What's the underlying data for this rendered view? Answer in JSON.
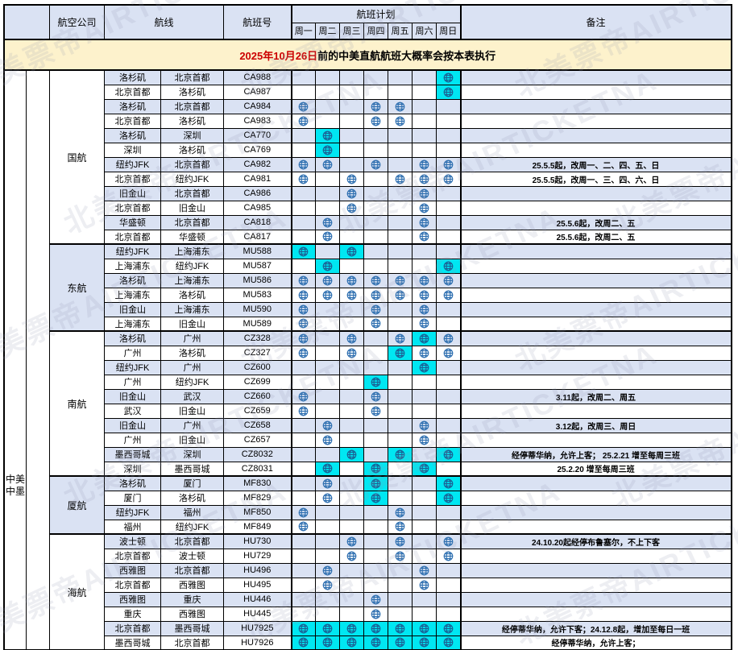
{
  "header": {
    "airline": "航空公司",
    "route": "航线",
    "flight_no": "航班号",
    "schedule": "航班计划",
    "days": [
      "周一",
      "周二",
      "周三",
      "周四",
      "周五",
      "周六",
      "周日"
    ],
    "remarks": "备注"
  },
  "banner": {
    "date": "2025年10月26日",
    "text": "前的中美直航航班大概率会按本表执行"
  },
  "side_label": {
    "lines": [
      "中美",
      "中墨"
    ]
  },
  "watermark": {
    "text": "北美票帝AIRTICKETNA"
  },
  "colors": {
    "header_bg": "#dae2f3",
    "row_alt_bg": "#dae2f3",
    "highlight_cyan": "#00e7f2",
    "banner_bg": "#fdf2cc",
    "banner_date_red": "#cc0000",
    "icon_blue": "#2e6fb0",
    "icon_dark_blue": "#1b6094",
    "border_black": "#000000"
  },
  "icon_legend": {
    "flight_icon": "globe-airline-logo-icon",
    "cell_codes": "0=no flight, 1=flight, 2=flight highlighted cyan"
  },
  "groups": [
    {
      "airline": "国航",
      "shaded": false,
      "rows": [
        {
          "from": "洛杉矶",
          "to": "北京首都",
          "flight": "CA988",
          "days": [
            0,
            0,
            0,
            0,
            0,
            0,
            2
          ],
          "remark": ""
        },
        {
          "from": "北京首都",
          "to": "洛杉矶",
          "flight": "CA987",
          "days": [
            0,
            0,
            0,
            0,
            0,
            0,
            2
          ],
          "remark": ""
        },
        {
          "from": "洛杉矶",
          "to": "北京首都",
          "flight": "CA984",
          "days": [
            1,
            0,
            0,
            1,
            1,
            0,
            0
          ],
          "remark": ""
        },
        {
          "from": "北京首都",
          "to": "洛杉矶",
          "flight": "CA983",
          "days": [
            1,
            0,
            0,
            1,
            1,
            0,
            0
          ],
          "remark": ""
        },
        {
          "from": "洛杉矶",
          "to": "深圳",
          "flight": "CA770",
          "days": [
            0,
            2,
            0,
            0,
            0,
            0,
            0
          ],
          "remark": ""
        },
        {
          "from": "深圳",
          "to": "洛杉矶",
          "flight": "CA769",
          "days": [
            0,
            2,
            0,
            0,
            0,
            0,
            0
          ],
          "remark": ""
        },
        {
          "from": "纽约JFK",
          "to": "北京首都",
          "flight": "CA982",
          "days": [
            1,
            1,
            0,
            1,
            0,
            1,
            1
          ],
          "remark": "25.5.5起，改周一、二、四、五、日"
        },
        {
          "from": "北京首都",
          "to": "纽约JFK",
          "flight": "CA981",
          "days": [
            1,
            0,
            1,
            0,
            1,
            1,
            1
          ],
          "remark": "25.5.5起，改周一、三、四、六、日"
        },
        {
          "from": "旧金山",
          "to": "北京首都",
          "flight": "CA986",
          "days": [
            0,
            0,
            1,
            0,
            0,
            1,
            0
          ],
          "remark": ""
        },
        {
          "from": "北京首都",
          "to": "旧金山",
          "flight": "CA985",
          "days": [
            0,
            0,
            1,
            0,
            0,
            1,
            0
          ],
          "remark": ""
        },
        {
          "from": "华盛顿",
          "to": "北京首都",
          "flight": "CA818",
          "days": [
            0,
            1,
            0,
            0,
            0,
            1,
            0
          ],
          "remark": "25.5.6起，改周二、五"
        },
        {
          "from": "北京首都",
          "to": "华盛顿",
          "flight": "CA817",
          "days": [
            0,
            1,
            0,
            0,
            0,
            1,
            0
          ],
          "remark": "25.5.6起，改周二、五"
        }
      ]
    },
    {
      "airline": "东航",
      "shaded": true,
      "rows": [
        {
          "from": "纽约JFK",
          "to": "上海浦东",
          "flight": "MU588",
          "days": [
            2,
            0,
            2,
            0,
            0,
            0,
            0
          ],
          "remark": ""
        },
        {
          "from": "上海浦东",
          "to": "纽约JFK",
          "flight": "MU587",
          "days": [
            0,
            2,
            0,
            0,
            0,
            0,
            2
          ],
          "remark": ""
        },
        {
          "from": "洛杉矶",
          "to": "上海浦东",
          "flight": "MU586",
          "days": [
            1,
            1,
            1,
            1,
            1,
            1,
            1
          ],
          "remark": ""
        },
        {
          "from": "上海浦东",
          "to": "洛杉矶",
          "flight": "MU583",
          "days": [
            1,
            1,
            1,
            1,
            1,
            1,
            1
          ],
          "remark": ""
        },
        {
          "from": "旧金山",
          "to": "上海浦东",
          "flight": "MU590",
          "days": [
            1,
            0,
            0,
            1,
            0,
            1,
            0
          ],
          "remark": ""
        },
        {
          "from": "上海浦东",
          "to": "旧金山",
          "flight": "MU589",
          "days": [
            1,
            0,
            0,
            1,
            0,
            1,
            0
          ],
          "remark": ""
        }
      ]
    },
    {
      "airline": "南航",
      "shaded": false,
      "rows": [
        {
          "from": "洛杉矶",
          "to": "广州",
          "flight": "CZ328",
          "days": [
            1,
            0,
            1,
            0,
            1,
            2,
            1
          ],
          "remark": ""
        },
        {
          "from": "广州",
          "to": "洛杉矶",
          "flight": "CZ327",
          "days": [
            1,
            0,
            1,
            0,
            2,
            1,
            1
          ],
          "remark": ""
        },
        {
          "from": "纽约JFK",
          "to": "广州",
          "flight": "CZ600",
          "days": [
            0,
            0,
            0,
            0,
            0,
            2,
            0
          ],
          "remark": ""
        },
        {
          "from": "广州",
          "to": "纽约JFK",
          "flight": "CZ699",
          "days": [
            0,
            0,
            0,
            2,
            0,
            0,
            0
          ],
          "remark": ""
        },
        {
          "from": "旧金山",
          "to": "武汉",
          "flight": "CZ660",
          "days": [
            1,
            0,
            0,
            1,
            0,
            0,
            0
          ],
          "remark": "3.11起，改周二、周五"
        },
        {
          "from": "武汉",
          "to": "旧金山",
          "flight": "CZ659",
          "days": [
            1,
            0,
            0,
            1,
            0,
            0,
            0
          ],
          "remark": ""
        },
        {
          "from": "旧金山",
          "to": "广州",
          "flight": "CZ658",
          "days": [
            0,
            1,
            0,
            0,
            0,
            1,
            0
          ],
          "remark": "3.12起，改周三、周日"
        },
        {
          "from": "广州",
          "to": "旧金山",
          "flight": "CZ657",
          "days": [
            0,
            1,
            0,
            0,
            0,
            1,
            0
          ],
          "remark": ""
        },
        {
          "from": "墨西哥城",
          "to": "深圳",
          "flight": "CZ8032",
          "days": [
            0,
            0,
            2,
            0,
            2,
            0,
            2
          ],
          "remark": "经停蒂华纳，允许上客； 25.2.21 增至每周三班"
        },
        {
          "from": "深圳",
          "to": "墨西哥城",
          "flight": "CZ8031",
          "days": [
            0,
            2,
            0,
            2,
            0,
            2,
            0
          ],
          "remark": "25.2.20 增至每周三班"
        }
      ]
    },
    {
      "airline": "厦航",
      "shaded": true,
      "rows": [
        {
          "from": "洛杉矶",
          "to": "厦门",
          "flight": "MF830",
          "days": [
            0,
            1,
            0,
            2,
            0,
            0,
            2
          ],
          "remark": ""
        },
        {
          "from": "厦门",
          "to": "洛杉矶",
          "flight": "MF829",
          "days": [
            0,
            1,
            0,
            2,
            0,
            0,
            2
          ],
          "remark": ""
        },
        {
          "from": "纽约JFK",
          "to": "福州",
          "flight": "MF850",
          "days": [
            1,
            0,
            0,
            0,
            1,
            0,
            0
          ],
          "remark": ""
        },
        {
          "from": "福州",
          "to": "纽约JFK",
          "flight": "MF849",
          "days": [
            1,
            0,
            0,
            0,
            1,
            0,
            0
          ],
          "remark": ""
        }
      ]
    },
    {
      "airline": "海航",
      "shaded": false,
      "rows": [
        {
          "from": "波士顿",
          "to": "北京首都",
          "flight": "HU730",
          "days": [
            0,
            0,
            1,
            0,
            1,
            0,
            1
          ],
          "remark": "24.10.20起经停布鲁塞尔，不上下客"
        },
        {
          "from": "北京首都",
          "to": "波士顿",
          "flight": "HU729",
          "days": [
            0,
            0,
            1,
            0,
            1,
            0,
            1
          ],
          "remark": ""
        },
        {
          "from": "西雅图",
          "to": "北京首都",
          "flight": "HU496",
          "days": [
            0,
            1,
            0,
            0,
            0,
            1,
            0
          ],
          "remark": ""
        },
        {
          "from": "北京首都",
          "to": "西雅图",
          "flight": "HU495",
          "days": [
            0,
            1,
            0,
            0,
            0,
            1,
            0
          ],
          "remark": ""
        },
        {
          "from": "西雅图",
          "to": "重庆",
          "flight": "HU446",
          "days": [
            0,
            0,
            0,
            1,
            0,
            0,
            0
          ],
          "remark": ""
        },
        {
          "from": "重庆",
          "to": "西雅图",
          "flight": "HU445",
          "days": [
            0,
            0,
            0,
            1,
            0,
            0,
            0
          ],
          "remark": ""
        },
        {
          "from": "北京首都",
          "to": "墨西哥城",
          "flight": "HU7925",
          "days": [
            2,
            2,
            2,
            2,
            2,
            2,
            2
          ],
          "remark": "经停蒂华纳，允许下客；24.12.8起，增加至每日一班"
        },
        {
          "from": "墨西哥城",
          "to": "北京首都",
          "flight": "HU7926",
          "days": [
            2,
            2,
            2,
            2,
            2,
            2,
            2
          ],
          "remark": "经停蒂华纳，允许上客；"
        }
      ]
    }
  ]
}
